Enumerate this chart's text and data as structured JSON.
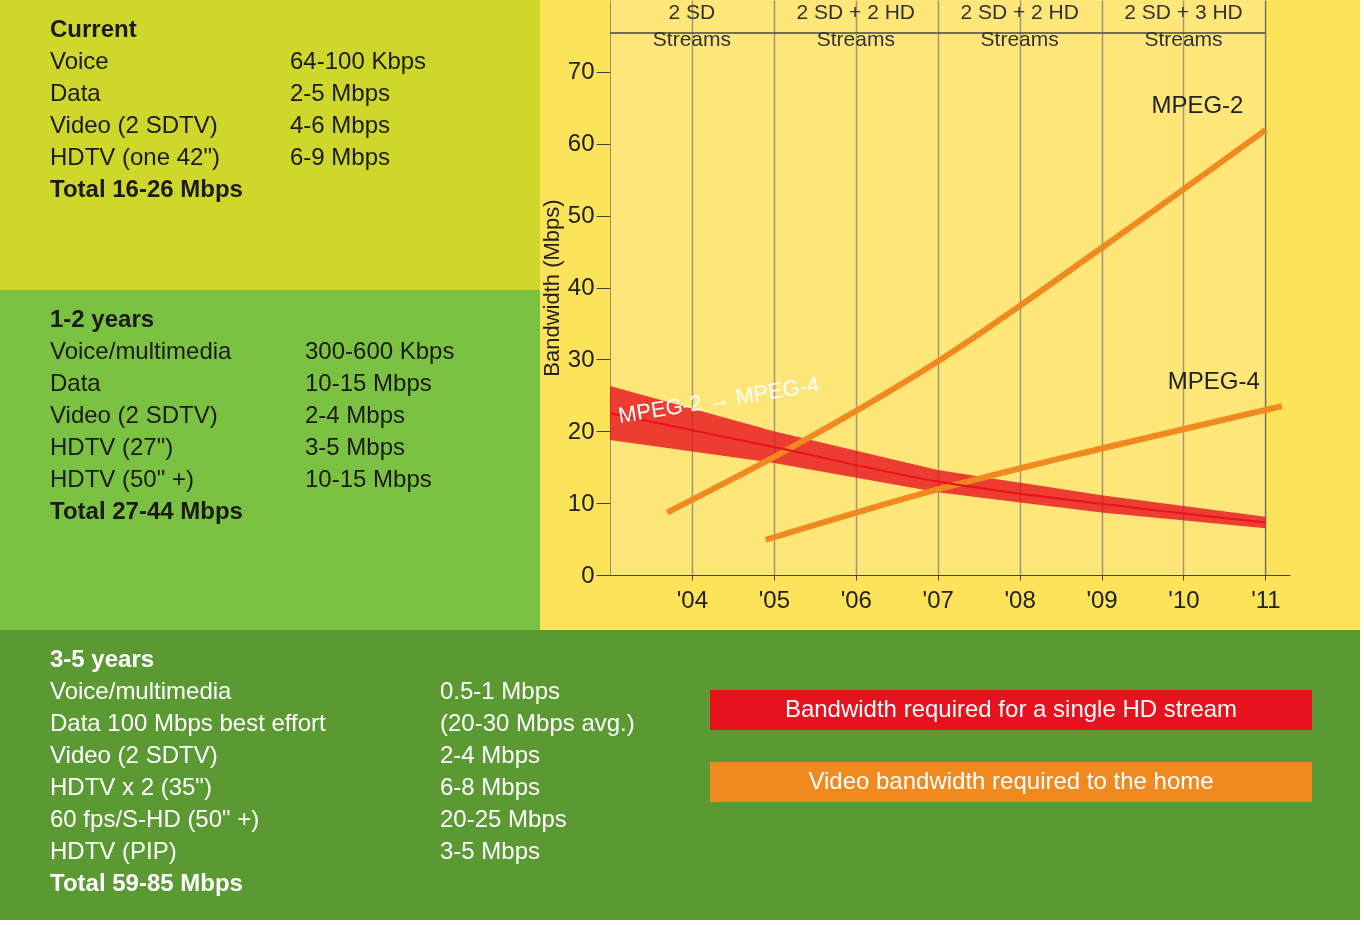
{
  "chart_data": [
    {
      "type": "other",
      "title": "Current",
      "annotations": [
        "Voice",
        "64-100 Kbps",
        "Data",
        "2-5 Mbps",
        "Video (2 SDTV)",
        "4-6 Mbps",
        "HDTV (one 42\")",
        "6-9 Mbps"
      ],
      "subtitle": "Total 16-26 Mbps"
    },
    {
      "type": "other",
      "title": "1-2 years",
      "annotations": [
        "Voice/multimedia",
        "300-600 Kbps",
        "Data",
        "10-15 Mbps",
        "Video (2 SDTV)",
        "2-4 Mbps",
        "HDTV (27\")",
        "3-5 Mbps",
        "HDTV (50\" +)",
        "10-15 Mbps"
      ],
      "subtitle": "Total 27-44 Mbps"
    },
    {
      "type": "line",
      "ylabel": "Bandwidth (Mbps)",
      "xlim": [
        2003,
        2011.3
      ],
      "ylim": [
        0,
        80
      ],
      "xticks": [
        {
          "value": 2004,
          "label": "'04"
        },
        {
          "value": 2005,
          "label": "'05"
        },
        {
          "value": 2006,
          "label": "'06"
        },
        {
          "value": 2007,
          "label": "'07"
        },
        {
          "value": 2008,
          "label": "'08"
        },
        {
          "value": 2009,
          "label": "'09"
        },
        {
          "value": 2010,
          "label": "'10"
        },
        {
          "value": 2011,
          "label": "'11"
        }
      ],
      "yticks": [
        0,
        10,
        20,
        30,
        40,
        50,
        60,
        70
      ],
      "grid": "x",
      "legend": "bottom right",
      "bands": [
        {
          "axis": "x",
          "from": 2003,
          "to": 2005,
          "label": "2 SD\nStreams",
          "color": "#ffe9a0"
        },
        {
          "axis": "x",
          "from": 2005,
          "to": 2007,
          "label": "2 SD + 2 HD\nStreams",
          "color": "#ffe9a0"
        },
        {
          "axis": "x",
          "from": 2007,
          "to": 2009,
          "label": "2 SD + 2 HD\nStreams",
          "color": "#ffe9a0"
        },
        {
          "axis": "x",
          "from": 2009,
          "to": 2011,
          "label": "2 SD + 3 HD\nStreams",
          "color": "#ffe9a0"
        }
      ],
      "series": [
        {
          "name": "MPEG-2",
          "color": "#f08a1e",
          "x": [
            2003.7,
            2005,
            2007,
            2009,
            2011
          ],
          "values": [
            8.7,
            16.4,
            29.7,
            45.5,
            61.9
          ]
        },
        {
          "name": "MPEG-4",
          "color": "#f08a1e",
          "x": [
            2004.9,
            2007,
            2009,
            2011.2
          ],
          "values": [
            4.9,
            11.9,
            17.6,
            23.5
          ]
        },
        {
          "name": "Bandwidth required for a single HD stream",
          "color": "#e8121e",
          "x": [
            2003,
            2005,
            2007,
            2009,
            2011
          ],
          "values": [
            22.5,
            17.8,
            13,
            9.9,
            7.3
          ],
          "lower": [
            18.8,
            15.6,
            11.5,
            8.7,
            6.5
          ],
          "upper": [
            26.3,
            20,
            14.6,
            11.1,
            8.1
          ]
        }
      ],
      "annotations": [
        "MPEG-2 → MPEG-4",
        "Video bandwidth required to the home"
      ]
    },
    {
      "type": "other",
      "title": "3-5 years",
      "annotations": [
        "Voice/multimedia",
        "0.5-1 Mbps",
        "Data  100 Mbps best effort",
        "(20-30 Mbps avg.)",
        "Video (2 SDTV)",
        "2-4 Mbps",
        "HDTV  x 2 (35\")",
        "6-8 Mbps",
        "60 fps/S-HD (50\" +)",
        "20-25 Mbps",
        "HDTV (PIP)",
        "3-5 Mbps"
      ],
      "subtitle": "Total 59-85 Mbps"
    }
  ]
}
